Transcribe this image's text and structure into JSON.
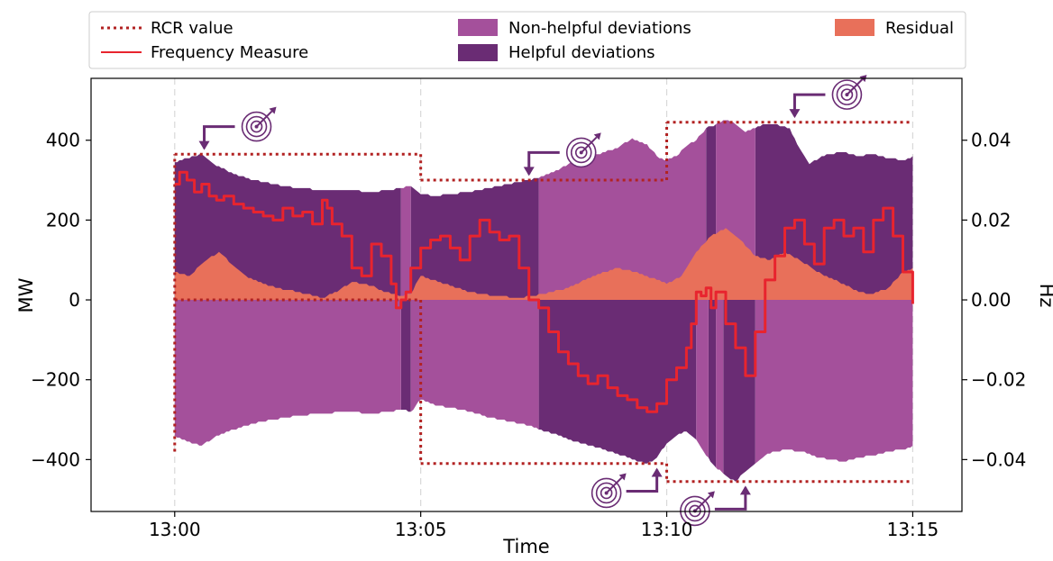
{
  "chart_data": {
    "type": "area",
    "title": "",
    "xlabel": "Time",
    "ylabel_left": "MW",
    "ylabel_right": "Hz",
    "x_ticks": [
      "13:00",
      "13:05",
      "13:10",
      "13:15"
    ],
    "x_range_minutes": [
      -1.7,
      16.0
    ],
    "ylim_left": [
      -530,
      555
    ],
    "ylim_right": [
      -0.053,
      0.0555
    ],
    "y_ticks_left": [
      "400",
      "200",
      "0",
      "−200",
      "−400"
    ],
    "y_ticks_right": [
      "0.04",
      "0.02",
      "0.00",
      "−0.02",
      "−0.04"
    ],
    "grid": "vertical dashed at x ticks",
    "legend_placement": "top, above plot",
    "legend": [
      {
        "label": "RCR value",
        "style": "dotted-line",
        "color": "#b22222"
      },
      {
        "label": "Frequency Measure",
        "style": "line",
        "color": "#e8242e"
      },
      {
        "label": "Non-helpful deviations",
        "style": "patch",
        "color": "#a4509b"
      },
      {
        "label": "Helpful deviations",
        "style": "patch",
        "color": "#6a2c74"
      },
      {
        "label": "Residual",
        "style": "patch",
        "color": "#e8705a"
      }
    ],
    "colors": {
      "rcr": "#b22222",
      "frequency": "#e8242e",
      "non_helpful": "#a4509b",
      "helpful": "#6a2c74",
      "residual": "#e8705a",
      "annotation": "#6a2c74"
    },
    "rcr_segments": [
      {
        "start_min": 0,
        "end_min": 5,
        "upper_mw": 365,
        "lower_mw": 0
      },
      {
        "start_min": 5,
        "end_min": 10,
        "upper_mw": 300,
        "lower_mw": -410
      },
      {
        "start_min": 10,
        "end_min": 15,
        "upper_mw": 445,
        "lower_mw": -455
      }
    ],
    "rcr_edges": [
      {
        "at_min": 0,
        "from_mw": -380,
        "to_mw": 365
      }
    ],
    "upper_envelope_mw": {
      "t_min": [
        0,
        0.25,
        0.55,
        0.8,
        1.2,
        1.6,
        2.0,
        2.5,
        3.0,
        3.5,
        4.0,
        4.4,
        4.6,
        4.8,
        5.0,
        5.3,
        5.6,
        6.0,
        6.4,
        6.8,
        7.2,
        7.4,
        7.7,
        8.0,
        8.3,
        8.6,
        9.0,
        9.3,
        9.6,
        9.8,
        10.0,
        10.2,
        10.4,
        10.6,
        10.8,
        11.0,
        11.2,
        11.4,
        11.6,
        11.8,
        12.0,
        12.2,
        12.5,
        12.7,
        12.9,
        13.1,
        13.3,
        13.6,
        13.9,
        14.2,
        14.5,
        14.8,
        15.0
      ],
      "mw": [
        345,
        355,
        365,
        340,
        315,
        300,
        290,
        280,
        275,
        275,
        270,
        275,
        280,
        285,
        265,
        260,
        265,
        270,
        280,
        290,
        300,
        305,
        320,
        340,
        355,
        365,
        380,
        405,
        390,
        360,
        350,
        360,
        385,
        400,
        430,
        440,
        450,
        440,
        420,
        430,
        440,
        440,
        430,
        380,
        340,
        355,
        365,
        370,
        360,
        365,
        355,
        350,
        360
      ]
    },
    "lower_envelope_mw": {
      "t_min": [
        0,
        0.25,
        0.55,
        0.8,
        1.2,
        1.6,
        2.0,
        2.5,
        3.0,
        3.5,
        4.0,
        4.4,
        4.6,
        4.8,
        5.0,
        5.3,
        5.6,
        6.0,
        6.4,
        6.8,
        7.2,
        7.4,
        7.7,
        8.0,
        8.3,
        8.6,
        9.0,
        9.3,
        9.6,
        9.8,
        10.0,
        10.2,
        10.4,
        10.6,
        10.8,
        11.0,
        11.2,
        11.4,
        11.6,
        11.8,
        12.0,
        12.2,
        12.5,
        12.7,
        12.9,
        13.1,
        13.3,
        13.6,
        13.9,
        14.2,
        14.5,
        14.8,
        15.0
      ],
      "mw": [
        -340,
        -355,
        -365,
        -345,
        -325,
        -310,
        -300,
        -290,
        -285,
        -280,
        -285,
        -280,
        -275,
        -280,
        -250,
        -265,
        -270,
        -280,
        -295,
        -305,
        -315,
        -325,
        -335,
        -350,
        -360,
        -370,
        -385,
        -400,
        -410,
        -395,
        -360,
        -340,
        -330,
        -350,
        -390,
        -420,
        -440,
        -455,
        -430,
        -410,
        -390,
        -380,
        -375,
        -380,
        -385,
        -395,
        -400,
        -405,
        -395,
        -390,
        -380,
        -375,
        -365
      ]
    },
    "residual_mw": {
      "t_min": [
        0,
        0.3,
        0.6,
        0.9,
        1.2,
        1.5,
        1.8,
        2.1,
        2.5,
        3.0,
        3.3,
        3.6,
        4.0,
        4.3,
        4.6,
        4.8,
        5.0,
        5.5,
        6.0,
        6.5,
        7.0,
        7.5,
        8.0,
        8.5,
        9.0,
        9.5,
        10.0,
        10.3,
        10.6,
        10.9,
        11.2,
        11.5,
        11.8,
        12.1,
        12.4,
        12.7,
        13.0,
        13.3,
        13.6,
        13.9,
        14.2,
        14.5,
        14.8,
        15.0
      ],
      "mw": [
        70,
        60,
        95,
        120,
        85,
        55,
        40,
        30,
        20,
        5,
        20,
        45,
        35,
        20,
        10,
        15,
        60,
        40,
        20,
        10,
        5,
        15,
        30,
        60,
        80,
        65,
        40,
        60,
        120,
        160,
        180,
        150,
        110,
        100,
        120,
        100,
        75,
        55,
        40,
        20,
        15,
        30,
        70,
        80
      ]
    },
    "helpful_spans_upper_min": [
      [
        0,
        4.6
      ],
      [
        4.8,
        7.4
      ],
      [
        10.8,
        11.0
      ],
      [
        11.8,
        15.0
      ]
    ],
    "non_helpful_spans_upper_min": [
      [
        4.6,
        4.8
      ],
      [
        7.4,
        10.8
      ],
      [
        11.0,
        11.8
      ]
    ],
    "helpful_spans_lower_min": [
      [
        4.6,
        4.8
      ],
      [
        7.4,
        10.6
      ],
      [
        10.85,
        11.0
      ],
      [
        11.15,
        11.8
      ]
    ],
    "non_helpful_spans_lower_min": [
      [
        0,
        4.6
      ],
      [
        4.8,
        7.4
      ],
      [
        10.6,
        10.85
      ],
      [
        11.0,
        11.15
      ],
      [
        11.8,
        15.0
      ]
    ],
    "frequency_hz": {
      "t_min": [
        0,
        0.1,
        0.25,
        0.4,
        0.55,
        0.7,
        0.85,
        1.0,
        1.2,
        1.4,
        1.6,
        1.8,
        2.0,
        2.2,
        2.4,
        2.6,
        2.8,
        3.0,
        3.1,
        3.2,
        3.4,
        3.6,
        3.8,
        4.0,
        4.2,
        4.4,
        4.5,
        4.6,
        4.7,
        4.8,
        5.0,
        5.2,
        5.4,
        5.6,
        5.8,
        6.0,
        6.2,
        6.4,
        6.6,
        6.8,
        7.0,
        7.2,
        7.4,
        7.6,
        7.8,
        8.0,
        8.2,
        8.4,
        8.6,
        8.8,
        9.0,
        9.2,
        9.4,
        9.6,
        9.8,
        10.0,
        10.2,
        10.4,
        10.5,
        10.6,
        10.7,
        10.8,
        10.9,
        11.0,
        11.2,
        11.4,
        11.6,
        11.8,
        12.0,
        12.2,
        12.4,
        12.6,
        12.8,
        13.0,
        13.2,
        13.4,
        13.6,
        13.8,
        14.0,
        14.2,
        14.4,
        14.6,
        14.8,
        15.0
      ],
      "hz": [
        0.029,
        0.032,
        0.03,
        0.027,
        0.029,
        0.026,
        0.025,
        0.026,
        0.024,
        0.023,
        0.022,
        0.021,
        0.02,
        0.023,
        0.021,
        0.022,
        0.019,
        0.025,
        0.023,
        0.019,
        0.016,
        0.008,
        0.006,
        0.014,
        0.011,
        0.004,
        -0.002,
        0.0,
        0.002,
        0.008,
        0.013,
        0.015,
        0.016,
        0.013,
        0.01,
        0.016,
        0.02,
        0.017,
        0.015,
        0.016,
        0.008,
        0.0,
        -0.002,
        -0.008,
        -0.013,
        -0.016,
        -0.019,
        -0.021,
        -0.019,
        -0.022,
        -0.024,
        -0.025,
        -0.027,
        -0.028,
        -0.026,
        -0.02,
        -0.017,
        -0.012,
        -0.006,
        0.002,
        0.001,
        0.003,
        -0.002,
        0.002,
        -0.006,
        -0.012,
        -0.019,
        -0.008,
        0.005,
        0.011,
        0.018,
        0.02,
        0.014,
        0.009,
        0.018,
        0.02,
        0.016,
        0.018,
        0.012,
        0.02,
        0.023,
        0.016,
        0.007,
        -0.001
      ]
    },
    "annotations": [
      {
        "type": "target-arrow",
        "at_min": 0.6,
        "mw": 380,
        "side": "above"
      },
      {
        "type": "target-arrow",
        "at_min": 7.2,
        "mw": 315,
        "side": "above"
      },
      {
        "type": "target-arrow",
        "at_min": 12.6,
        "mw": 460,
        "side": "above"
      },
      {
        "type": "target-arrow",
        "at_min": 9.8,
        "mw": -425,
        "side": "below"
      },
      {
        "type": "target-arrow",
        "at_min": 11.6,
        "mw": -470,
        "side": "below"
      }
    ]
  }
}
